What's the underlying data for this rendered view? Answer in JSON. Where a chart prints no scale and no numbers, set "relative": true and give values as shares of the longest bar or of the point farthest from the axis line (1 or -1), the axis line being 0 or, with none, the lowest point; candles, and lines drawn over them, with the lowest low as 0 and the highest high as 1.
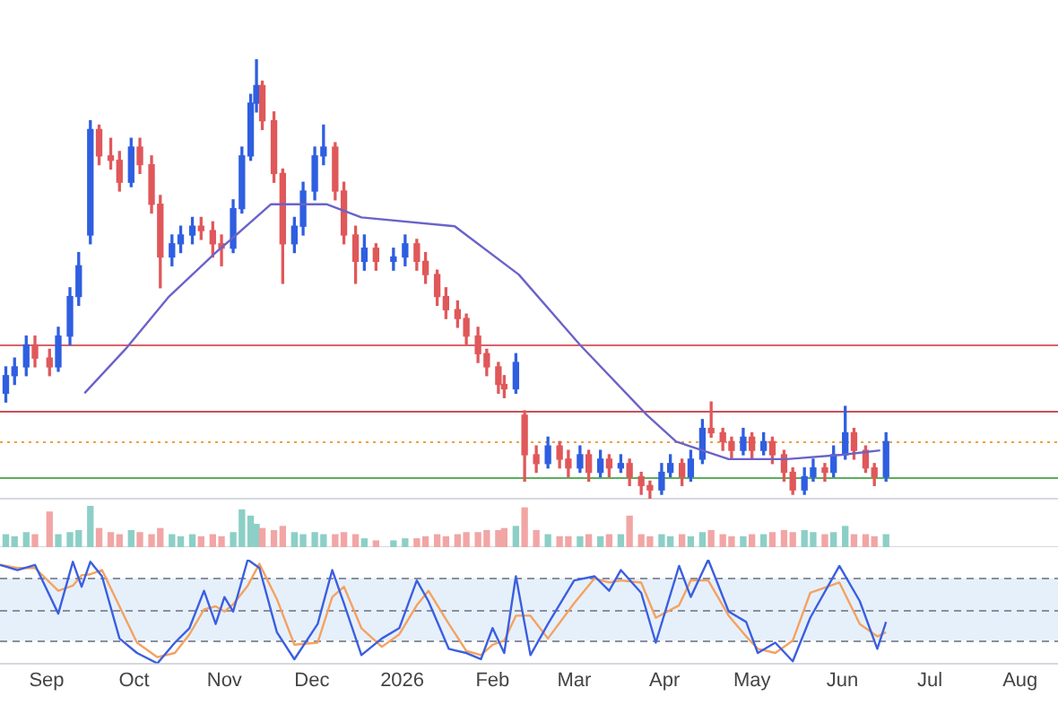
{
  "chart_data": [
    {
      "type": "candlestick",
      "relative": true,
      "tick_labels": false,
      "xlim": [
        "2025-08-16",
        "2026-08-14"
      ],
      "x": [
        "2025-08-18",
        "2025-08-21",
        "2025-08-25",
        "2025-08-28",
        "2025-09-02",
        "2025-09-05",
        "2025-09-09",
        "2025-09-12",
        "2025-09-16",
        "2025-09-19",
        "2025-09-23",
        "2025-09-26",
        "2025-09-30",
        "2025-10-03",
        "2025-10-07",
        "2025-10-10",
        "2025-10-14",
        "2025-10-17",
        "2025-10-21",
        "2025-10-24",
        "2025-10-28",
        "2025-10-31",
        "2025-11-04",
        "2025-11-07",
        "2025-11-10",
        "2025-11-12",
        "2025-11-14",
        "2025-11-18",
        "2025-11-21",
        "2025-11-25",
        "2025-11-28",
        "2025-12-02",
        "2025-12-05",
        "2025-12-09",
        "2025-12-12",
        "2025-12-16",
        "2025-12-19",
        "2025-12-23",
        "2025-12-29",
        "2026-01-02",
        "2026-01-06",
        "2026-01-09",
        "2026-01-13",
        "2026-01-16",
        "2026-01-20",
        "2026-01-23",
        "2026-01-27",
        "2026-01-30",
        "2026-02-03",
        "2026-02-05",
        "2026-02-09",
        "2026-02-12",
        "2026-02-16",
        "2026-02-20",
        "2026-02-24",
        "2026-02-27",
        "2026-03-03",
        "2026-03-06",
        "2026-03-10",
        "2026-03-13",
        "2026-03-17",
        "2026-03-20",
        "2026-03-24",
        "2026-03-27",
        "2026-03-31",
        "2026-04-03",
        "2026-04-07",
        "2026-04-10",
        "2026-04-14",
        "2026-04-17",
        "2026-04-21",
        "2026-04-24",
        "2026-04-28",
        "2026-05-01",
        "2026-05-05",
        "2026-05-08",
        "2026-05-12",
        "2026-05-15",
        "2026-05-19",
        "2026-05-22",
        "2026-05-26",
        "2026-05-29",
        "2026-06-02",
        "2026-06-05",
        "2026-06-09",
        "2026-06-12",
        "2026-06-16"
      ],
      "ohlc": [
        [
          0.24,
          0.3,
          0.22,
          0.28
        ],
        [
          0.28,
          0.32,
          0.26,
          0.3
        ],
        [
          0.3,
          0.37,
          0.28,
          0.35
        ],
        [
          0.35,
          0.37,
          0.3,
          0.32
        ],
        [
          0.32,
          0.34,
          0.28,
          0.3
        ],
        [
          0.3,
          0.39,
          0.29,
          0.37
        ],
        [
          0.37,
          0.48,
          0.35,
          0.46
        ],
        [
          0.46,
          0.56,
          0.44,
          0.53
        ],
        [
          0.6,
          0.86,
          0.58,
          0.84
        ],
        [
          0.84,
          0.85,
          0.76,
          0.78
        ],
        [
          0.78,
          0.82,
          0.75,
          0.77
        ],
        [
          0.77,
          0.79,
          0.7,
          0.72
        ],
        [
          0.72,
          0.82,
          0.71,
          0.8
        ],
        [
          0.8,
          0.82,
          0.74,
          0.76
        ],
        [
          0.76,
          0.78,
          0.65,
          0.67
        ],
        [
          0.67,
          0.69,
          0.48,
          0.55
        ],
        [
          0.55,
          0.6,
          0.53,
          0.58
        ],
        [
          0.58,
          0.62,
          0.56,
          0.6
        ],
        [
          0.6,
          0.64,
          0.58,
          0.62
        ],
        [
          0.62,
          0.64,
          0.59,
          0.61
        ],
        [
          0.61,
          0.63,
          0.55,
          0.58
        ],
        [
          0.58,
          0.6,
          0.53,
          0.57
        ],
        [
          0.57,
          0.68,
          0.56,
          0.66
        ],
        [
          0.66,
          0.8,
          0.65,
          0.78
        ],
        [
          0.78,
          0.92,
          0.77,
          0.9
        ],
        [
          0.9,
          1.0,
          0.88,
          0.94
        ],
        [
          0.94,
          0.95,
          0.84,
          0.86
        ],
        [
          0.86,
          0.88,
          0.72,
          0.74
        ],
        [
          0.74,
          0.75,
          0.49,
          0.58
        ],
        [
          0.58,
          0.64,
          0.56,
          0.62
        ],
        [
          0.62,
          0.72,
          0.6,
          0.7
        ],
        [
          0.7,
          0.8,
          0.68,
          0.78
        ],
        [
          0.78,
          0.85,
          0.76,
          0.8
        ],
        [
          0.8,
          0.81,
          0.68,
          0.7
        ],
        [
          0.7,
          0.72,
          0.58,
          0.6
        ],
        [
          0.6,
          0.62,
          0.49,
          0.54
        ],
        [
          0.54,
          0.6,
          0.52,
          0.57
        ],
        [
          0.57,
          0.58,
          0.52,
          0.54
        ],
        [
          0.54,
          0.57,
          0.52,
          0.55
        ],
        [
          0.55,
          0.6,
          0.53,
          0.58
        ],
        [
          0.58,
          0.59,
          0.52,
          0.54
        ],
        [
          0.54,
          0.56,
          0.49,
          0.51
        ],
        [
          0.51,
          0.52,
          0.44,
          0.46
        ],
        [
          0.46,
          0.48,
          0.41,
          0.43
        ],
        [
          0.43,
          0.45,
          0.39,
          0.41
        ],
        [
          0.41,
          0.42,
          0.35,
          0.37
        ],
        [
          0.37,
          0.39,
          0.31,
          0.33
        ],
        [
          0.33,
          0.34,
          0.28,
          0.3
        ],
        [
          0.3,
          0.31,
          0.24,
          0.26
        ],
        [
          0.26,
          0.28,
          0.23,
          0.25
        ],
        [
          0.25,
          0.33,
          0.24,
          0.31
        ],
        [
          0.19,
          0.2,
          0.04,
          0.1
        ],
        [
          0.1,
          0.12,
          0.06,
          0.08
        ],
        [
          0.08,
          0.14,
          0.07,
          0.12
        ],
        [
          0.12,
          0.13,
          0.07,
          0.09
        ],
        [
          0.09,
          0.11,
          0.05,
          0.07
        ],
        [
          0.07,
          0.12,
          0.06,
          0.1
        ],
        [
          0.1,
          0.11,
          0.04,
          0.06
        ],
        [
          0.06,
          0.11,
          0.05,
          0.09
        ],
        [
          0.09,
          0.1,
          0.05,
          0.07
        ],
        [
          0.07,
          0.1,
          0.06,
          0.08
        ],
        [
          0.08,
          0.09,
          0.03,
          0.05
        ],
        [
          0.05,
          0.06,
          0.01,
          0.03
        ],
        [
          0.03,
          0.04,
          0,
          0.02
        ],
        [
          0.02,
          0.08,
          0.01,
          0.06
        ],
        [
          0.06,
          0.1,
          0.05,
          0.08
        ],
        [
          0.08,
          0.09,
          0.03,
          0.05
        ],
        [
          0.05,
          0.11,
          0.04,
          0.09
        ],
        [
          0.09,
          0.18,
          0.08,
          0.16
        ],
        [
          0.16,
          0.22,
          0.14,
          0.15
        ],
        [
          0.15,
          0.16,
          0.11,
          0.13
        ],
        [
          0.13,
          0.14,
          0.09,
          0.11
        ],
        [
          0.11,
          0.16,
          0.1,
          0.14
        ],
        [
          0.14,
          0.15,
          0.09,
          0.11
        ],
        [
          0.11,
          0.15,
          0.1,
          0.13
        ],
        [
          0.13,
          0.14,
          0.08,
          0.1
        ],
        [
          0.1,
          0.11,
          0.04,
          0.06
        ],
        [
          0.06,
          0.07,
          0.01,
          0.02
        ],
        [
          0.02,
          0.07,
          0.01,
          0.05
        ],
        [
          0.05,
          0.09,
          0.04,
          0.07
        ],
        [
          0.07,
          0.08,
          0.04,
          0.06
        ],
        [
          0.06,
          0.12,
          0.05,
          0.1
        ],
        [
          0.1,
          0.21,
          0.09,
          0.15
        ],
        [
          0.15,
          0.16,
          0.09,
          0.11
        ],
        [
          0.11,
          0.12,
          0.06,
          0.07
        ],
        [
          0.07,
          0.08,
          0.03,
          0.05
        ],
        [
          0.05,
          0.15,
          0.04,
          0.13
        ]
      ],
      "colors": [
        "#2f5fe0",
        "#2f5fe0",
        "#2f5fe0",
        "#e0585a",
        "#e0585a",
        "#2f5fe0",
        "#2f5fe0",
        "#2f5fe0",
        "#2f5fe0",
        "#e0585a",
        "#e0585a",
        "#e0585a",
        "#2f5fe0",
        "#e0585a",
        "#e0585a",
        "#e0585a",
        "#2f5fe0",
        "#2f5fe0",
        "#2f5fe0",
        "#e0585a",
        "#e0585a",
        "#e0585a",
        "#2f5fe0",
        "#2f5fe0",
        "#2f5fe0",
        "#2f5fe0",
        "#e0585a",
        "#e0585a",
        "#e0585a",
        "#2f5fe0",
        "#2f5fe0",
        "#2f5fe0",
        "#2f5fe0",
        "#e0585a",
        "#e0585a",
        "#e0585a",
        "#2f5fe0",
        "#e0585a",
        "#2f5fe0",
        "#2f5fe0",
        "#e0585a",
        "#e0585a",
        "#e0585a",
        "#e0585a",
        "#e0585a",
        "#e0585a",
        "#e0585a",
        "#e0585a",
        "#e0585a",
        "#e0585a",
        "#2f5fe0",
        "#e0585a",
        "#e0585a",
        "#2f5fe0",
        "#e0585a",
        "#e0585a",
        "#2f5fe0",
        "#e0585a",
        "#2f5fe0",
        "#e0585a",
        "#2f5fe0",
        "#e0585a",
        "#e0585a",
        "#e0585a",
        "#2f5fe0",
        "#2f5fe0",
        "#e0585a",
        "#2f5fe0",
        "#2f5fe0",
        "#e0585a",
        "#e0585a",
        "#e0585a",
        "#2f5fe0",
        "#e0585a",
        "#2f5fe0",
        "#e0585a",
        "#e0585a",
        "#e0585a",
        "#2f5fe0",
        "#2f5fe0",
        "#e0585a",
        "#2f5fe0",
        "#2f5fe0",
        "#e0585a",
        "#e0585a",
        "#e0585a",
        "#2f5fe0"
      ],
      "series": [
        {
          "type": "line",
          "color": "#6a63c8",
          "x": [
            "2025-09-14",
            "2025-09-28",
            "2025-10-13",
            "2025-10-29",
            "2025-11-05",
            "2025-11-17",
            "2025-11-30",
            "2025-12-06",
            "2025-12-18",
            "2026-01-19",
            "2026-02-10",
            "2026-03-03",
            "2026-03-26",
            "2026-04-05",
            "2026-04-23",
            "2026-05-13",
            "2026-06-01",
            "2026-06-14"
          ],
          "values": [
            0.24,
            0.34,
            0.46,
            0.56,
            0.6,
            0.67,
            0.67,
            0.67,
            0.64,
            0.62,
            0.51,
            0.35,
            0.19,
            0.13,
            0.09,
            0.09,
            0.1,
            0.11
          ]
        }
      ],
      "ref_lines": [
        {
          "axis": "y",
          "value": 0.35,
          "color": "#d9636a"
        },
        {
          "axis": "y",
          "value": 0.2,
          "color": "#c9505a"
        },
        {
          "axis": "y",
          "value": 0.13,
          "color": "#f0a040",
          "line_style": "dotted"
        },
        {
          "axis": "y",
          "value": 0.05,
          "color": "#5cae5c"
        }
      ]
    },
    {
      "type": "bar",
      "relative": true,
      "tick_labels": false,
      "xlim": [
        "2025-08-16",
        "2026-08-14"
      ],
      "x": [
        "2025-08-18",
        "2025-08-21",
        "2025-08-25",
        "2025-08-28",
        "2025-09-02",
        "2025-09-05",
        "2025-09-09",
        "2025-09-12",
        "2025-09-16",
        "2025-09-19",
        "2025-09-23",
        "2025-09-26",
        "2025-09-30",
        "2025-10-03",
        "2025-10-07",
        "2025-10-10",
        "2025-10-14",
        "2025-10-17",
        "2025-10-21",
        "2025-10-24",
        "2025-10-28",
        "2025-10-31",
        "2025-11-04",
        "2025-11-07",
        "2025-11-10",
        "2025-11-12",
        "2025-11-14",
        "2025-11-18",
        "2025-11-21",
        "2025-11-25",
        "2025-11-28",
        "2025-12-02",
        "2025-12-05",
        "2025-12-09",
        "2025-12-12",
        "2025-12-16",
        "2025-12-19",
        "2025-12-23",
        "2025-12-29",
        "2026-01-02",
        "2026-01-06",
        "2026-01-09",
        "2026-01-13",
        "2026-01-16",
        "2026-01-20",
        "2026-01-23",
        "2026-01-27",
        "2026-01-30",
        "2026-02-03",
        "2026-02-05",
        "2026-02-09",
        "2026-02-12",
        "2026-02-16",
        "2026-02-20",
        "2026-02-24",
        "2026-02-27",
        "2026-03-03",
        "2026-03-06",
        "2026-03-10",
        "2026-03-13",
        "2026-03-17",
        "2026-03-20",
        "2026-03-24",
        "2026-03-27",
        "2026-03-31",
        "2026-04-03",
        "2026-04-07",
        "2026-04-10",
        "2026-04-14",
        "2026-04-17",
        "2026-04-21",
        "2026-04-24",
        "2026-04-28",
        "2026-05-01",
        "2026-05-05",
        "2026-05-08",
        "2026-05-12",
        "2026-05-15",
        "2026-05-19",
        "2026-05-22",
        "2026-05-26",
        "2026-05-29",
        "2026-06-02",
        "2026-06-05",
        "2026-06-09",
        "2026-06-12",
        "2026-06-16"
      ],
      "values": [
        0.3,
        0.25,
        0.35,
        0.3,
        0.85,
        0.3,
        0.35,
        0.4,
        1.0,
        0.45,
        0.35,
        0.3,
        0.4,
        0.35,
        0.3,
        0.45,
        0.3,
        0.25,
        0.3,
        0.25,
        0.3,
        0.25,
        0.35,
        0.9,
        0.75,
        0.55,
        0.45,
        0.4,
        0.5,
        0.35,
        0.3,
        0.35,
        0.3,
        0.3,
        0.35,
        0.3,
        0.2,
        0.15,
        0.15,
        0.2,
        0.2,
        0.25,
        0.3,
        0.25,
        0.3,
        0.35,
        0.35,
        0.4,
        0.4,
        0.45,
        0.5,
        0.95,
        0.4,
        0.3,
        0.25,
        0.25,
        0.25,
        0.3,
        0.25,
        0.3,
        0.3,
        0.75,
        0.3,
        0.25,
        0.3,
        0.25,
        0.3,
        0.25,
        0.35,
        0.4,
        0.3,
        0.25,
        0.25,
        0.3,
        0.3,
        0.35,
        0.4,
        0.35,
        0.4,
        0.35,
        0.3,
        0.35,
        0.5,
        0.3,
        0.3,
        0.25,
        0.3
      ],
      "colors": [
        "#8ccfc6",
        "#8ccfc6",
        "#8ccfc6",
        "#f2a5a5",
        "#f2a5a5",
        "#8ccfc6",
        "#8ccfc6",
        "#8ccfc6",
        "#8ccfc6",
        "#f2a5a5",
        "#f2a5a5",
        "#f2a5a5",
        "#8ccfc6",
        "#f2a5a5",
        "#f2a5a5",
        "#f2a5a5",
        "#8ccfc6",
        "#8ccfc6",
        "#8ccfc6",
        "#f2a5a5",
        "#f2a5a5",
        "#f2a5a5",
        "#8ccfc6",
        "#8ccfc6",
        "#8ccfc6",
        "#8ccfc6",
        "#f2a5a5",
        "#f2a5a5",
        "#f2a5a5",
        "#8ccfc6",
        "#8ccfc6",
        "#8ccfc6",
        "#8ccfc6",
        "#f2a5a5",
        "#f2a5a5",
        "#f2a5a5",
        "#8ccfc6",
        "#f2a5a5",
        "#8ccfc6",
        "#8ccfc6",
        "#f2a5a5",
        "#f2a5a5",
        "#f2a5a5",
        "#f2a5a5",
        "#f2a5a5",
        "#f2a5a5",
        "#f2a5a5",
        "#f2a5a5",
        "#f2a5a5",
        "#f2a5a5",
        "#8ccfc6",
        "#f2a5a5",
        "#f2a5a5",
        "#8ccfc6",
        "#f2a5a5",
        "#f2a5a5",
        "#8ccfc6",
        "#f2a5a5",
        "#8ccfc6",
        "#f2a5a5",
        "#8ccfc6",
        "#f2a5a5",
        "#f2a5a5",
        "#f2a5a5",
        "#8ccfc6",
        "#8ccfc6",
        "#f2a5a5",
        "#8ccfc6",
        "#8ccfc6",
        "#f2a5a5",
        "#f2a5a5",
        "#f2a5a5",
        "#8ccfc6",
        "#f2a5a5",
        "#8ccfc6",
        "#f2a5a5",
        "#f2a5a5",
        "#f2a5a5",
        "#8ccfc6",
        "#8ccfc6",
        "#f2a5a5",
        "#8ccfc6",
        "#8ccfc6",
        "#f2a5a5",
        "#f2a5a5",
        "#f2a5a5",
        "#8ccfc6"
      ]
    },
    {
      "type": "line",
      "relative": true,
      "tick_labels": "x",
      "xlim": [
        "2025-08-16",
        "2026-08-14"
      ],
      "xticks": [
        {
          "value": "2025-09-01",
          "label": "Sep"
        },
        {
          "value": "2025-10-01",
          "label": "Oct"
        },
        {
          "value": "2025-11-01",
          "label": "Nov"
        },
        {
          "value": "2025-12-01",
          "label": "Dec"
        },
        {
          "value": "2026-01-01",
          "label": "2026"
        },
        {
          "value": "2026-02-01",
          "label": "Feb"
        },
        {
          "value": "2026-03-01",
          "label": "Mar"
        },
        {
          "value": "2026-04-01",
          "label": "Apr"
        },
        {
          "value": "2026-05-01",
          "label": "May"
        },
        {
          "value": "2026-06-01",
          "label": "Jun"
        },
        {
          "value": "2026-07-01",
          "label": "Jul"
        },
        {
          "value": "2026-08-01",
          "label": "Aug"
        }
      ],
      "x": [
        "2025-08-16",
        "2025-08-22",
        "2025-08-28",
        "2025-09-05",
        "2025-09-10",
        "2025-09-13",
        "2025-09-16",
        "2025-09-20",
        "2025-09-26",
        "2025-10-02",
        "2025-10-09",
        "2025-10-15",
        "2025-10-20",
        "2025-10-25",
        "2025-10-29",
        "2025-11-01",
        "2025-11-04",
        "2025-11-09",
        "2025-11-13",
        "2025-11-19",
        "2025-11-25",
        "2025-12-03",
        "2025-12-08",
        "2025-12-12",
        "2025-12-18",
        "2025-12-25",
        "2025-12-31",
        "2026-01-06",
        "2026-01-10",
        "2026-01-17",
        "2026-01-23",
        "2026-01-28",
        "2026-02-01",
        "2026-02-05",
        "2026-02-09",
        "2026-02-14",
        "2026-02-20",
        "2026-03-01",
        "2026-03-08",
        "2026-03-13",
        "2026-03-17",
        "2026-03-24",
        "2026-03-29",
        "2026-04-06",
        "2026-04-10",
        "2026-04-16",
        "2026-04-23",
        "2026-04-29",
        "2026-05-03",
        "2026-05-09",
        "2026-05-15",
        "2026-05-21",
        "2026-05-31",
        "2026-06-07",
        "2026-06-13",
        "2026-06-16"
      ],
      "series": [
        {
          "color": "#3b5fe0",
          "values": [
            0.95,
            0.9,
            0.95,
            0.48,
            0.98,
            0.74,
            0.98,
            0.84,
            0.24,
            0.1,
            0,
            0.2,
            0.34,
            0.7,
            0.38,
            0.64,
            0.5,
            1.0,
            0.92,
            0.3,
            0.04,
            0.38,
            0.9,
            0.58,
            0.08,
            0.24,
            0.34,
            0.8,
            0.6,
            0.14,
            0.1,
            0.04,
            0.34,
            0.1,
            0.84,
            0.08,
            0.38,
            0.8,
            0.84,
            0.7,
            0.9,
            0.68,
            0.2,
            0.94,
            0.64,
            1.0,
            0.5,
            0.4,
            0.1,
            0.2,
            0.02,
            0.44,
            0.94,
            0.6,
            0.14,
            0.4
          ]
        },
        {
          "color": "#f4a261",
          "values": [
            0.95,
            0.92,
            0.92,
            0.7,
            0.75,
            0.85,
            0.86,
            0.9,
            0.55,
            0.2,
            0.06,
            0.1,
            0.28,
            0.52,
            0.55,
            0.5,
            0.57,
            0.75,
            0.96,
            0.62,
            0.18,
            0.2,
            0.64,
            0.74,
            0.34,
            0.16,
            0.28,
            0.56,
            0.7,
            0.38,
            0.12,
            0.08,
            0.18,
            0.22,
            0.46,
            0.46,
            0.24,
            0.58,
            0.82,
            0.78,
            0.8,
            0.78,
            0.44,
            0.56,
            0.8,
            0.8,
            0.46,
            0.26,
            0.14,
            0.1,
            0.22,
            0.68,
            0.78,
            0.38,
            0.26,
            0.3
          ]
        }
      ],
      "bands": [
        {
          "axis": "y",
          "from": 0.22,
          "to": 0.82,
          "color": "#e6f0fb"
        }
      ],
      "ref_lines": [
        {
          "axis": "y",
          "value": 0.82,
          "color": "#8a8fa0",
          "line_style": "dashed"
        },
        {
          "axis": "y",
          "value": 0.52,
          "color": "#8a8fa0",
          "line_style": "dashed"
        },
        {
          "axis": "y",
          "value": 0.22,
          "color": "#8a8fa0",
          "line_style": "dashed"
        }
      ]
    }
  ]
}
